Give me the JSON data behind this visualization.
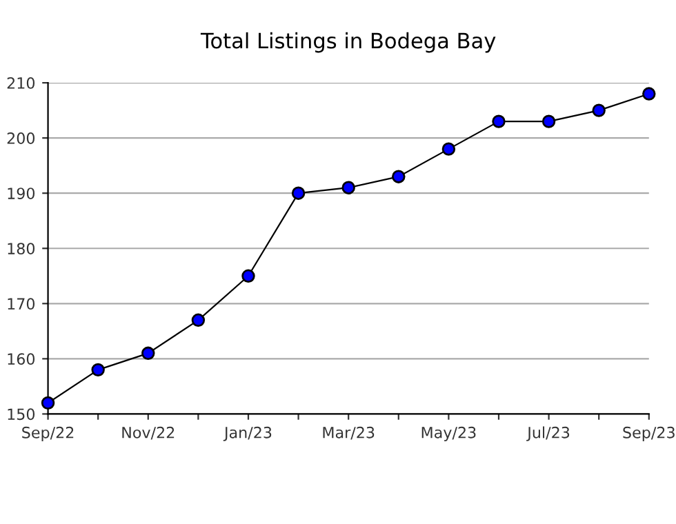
{
  "chart_data": {
    "type": "line",
    "title": "Total Listings in Bodega Bay",
    "categories": [
      "Sep/22",
      null,
      "Nov/22",
      null,
      "Jan/23",
      null,
      "Mar/23",
      null,
      "May/23",
      null,
      "Jul/23",
      null,
      "Sep/23"
    ],
    "series": [
      {
        "color": "#0000ff",
        "values": [
          152,
          158,
          161,
          167,
          175,
          190,
          191,
          193,
          198,
          203,
          203,
          205,
          208
        ]
      }
    ],
    "ylim": [
      150,
      210
    ],
    "yticks": [
      150,
      160,
      170,
      180,
      190,
      200,
      210
    ],
    "grid": "y",
    "marker": "circle",
    "line_style": "solid"
  }
}
